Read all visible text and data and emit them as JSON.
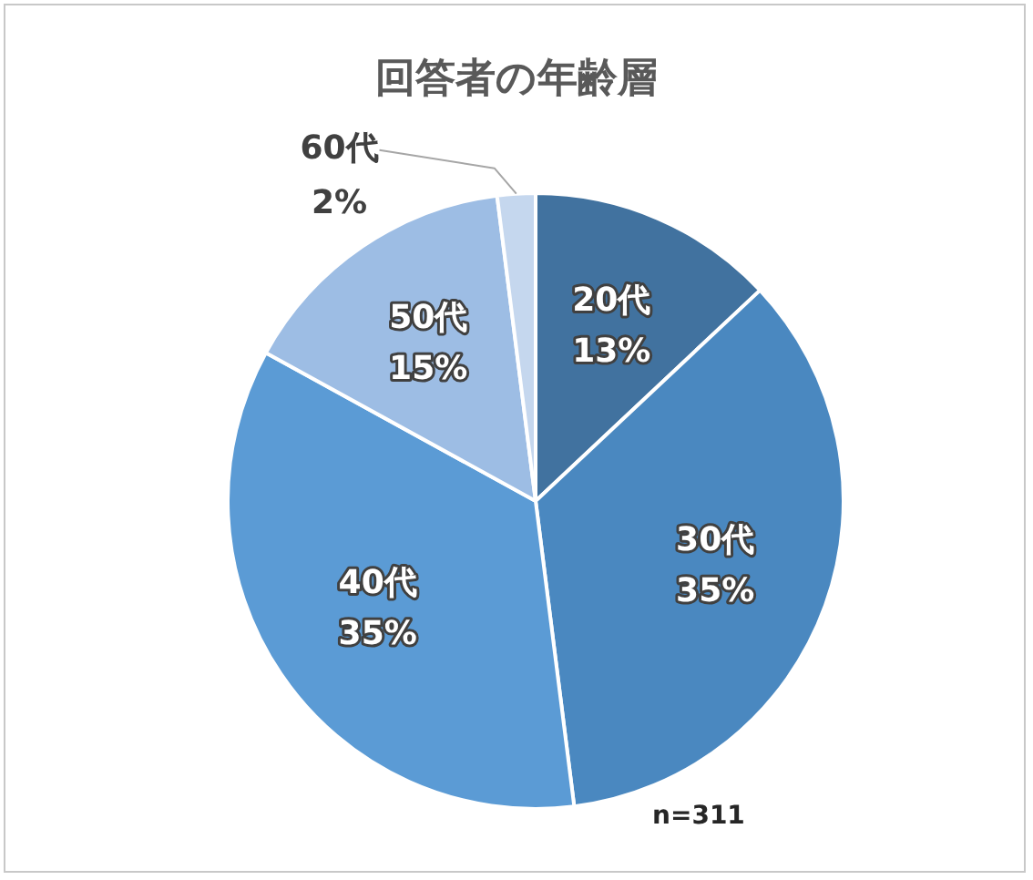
{
  "chart_data": {
    "type": "pie",
    "title": "回答者の年齢層",
    "categories": [
      "20代",
      "30代",
      "40代",
      "50代",
      "60代"
    ],
    "values": [
      13,
      35,
      35,
      15,
      2
    ],
    "value_labels": [
      "13%",
      "35%",
      "35%",
      "15%",
      "2%"
    ],
    "colors": [
      "#41729f",
      "#4a88c0",
      "#5b9bd5",
      "#9dbde4",
      "#c5d7ee"
    ],
    "annotations": [
      "n=311"
    ],
    "legend": false
  }
}
